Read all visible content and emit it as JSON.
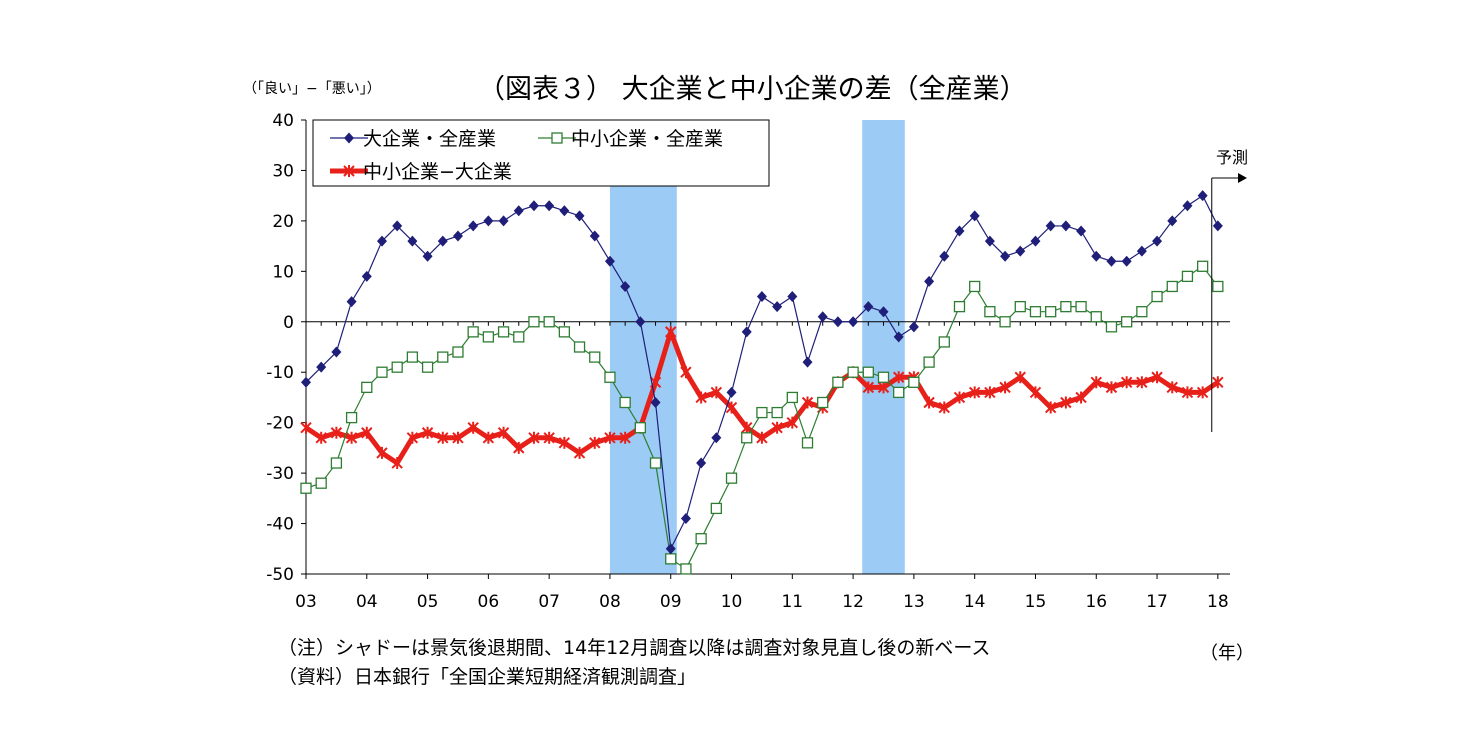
{
  "page": {
    "title": "（図表３） 大企業と中小企業の差（全産業）",
    "y_unit_label": "（「良い」−「悪い」）",
    "x_unit_label": "（年）",
    "note": "（注）シャドーは景気後退期間、14年12月調査以降は調査対象見直し後の新ベース",
    "source": "（資料）日本銀行「全国企業短期経済観測調査」",
    "forecast_label": "予測"
  },
  "colors": {
    "large": "#1f1f7a",
    "small": "#2e7d32",
    "diff": "#e8201a",
    "shade": "#9ccbf6"
  },
  "chart_data": {
    "type": "line",
    "title": "（図表３） 大企業と中小企業の差（全産業）",
    "ylabel": "（「良い」−「悪い」）",
    "xlabel": "（年）",
    "ylim": [
      -50,
      40
    ],
    "yticks": [
      40,
      30,
      20,
      10,
      0,
      -10,
      -20,
      -30,
      -40,
      -50
    ],
    "xticks": [
      "03",
      "04",
      "05",
      "06",
      "07",
      "08",
      "09",
      "10",
      "11",
      "12",
      "13",
      "14",
      "15",
      "16",
      "17",
      "18"
    ],
    "x_start": 2003.0,
    "x_step": 0.25,
    "x_range": [
      2003.0,
      2018.2
    ],
    "shaded_ranges": [
      [
        2008.0,
        2009.1
      ],
      [
        2012.15,
        2012.85
      ]
    ],
    "forecast_at": 2017.9,
    "legend_position": "top-left",
    "grid": false,
    "series": [
      {
        "name": "大企業・全産業",
        "marker": "diamond",
        "values": [
          -12,
          -9,
          -6,
          4,
          9,
          16,
          19,
          16,
          13,
          16,
          17,
          19,
          20,
          20,
          22,
          23,
          23,
          22,
          21,
          17,
          12,
          7,
          0,
          -16,
          -45,
          -39,
          -28,
          -23,
          -14,
          -2,
          5,
          3,
          5,
          -8,
          1,
          0,
          0,
          3,
          2,
          -3,
          -1,
          8,
          13,
          18,
          21,
          16,
          13,
          14,
          16,
          19,
          19,
          18,
          13,
          12,
          12,
          14,
          16,
          20,
          23,
          25,
          19
        ]
      },
      {
        "name": "中小企業・全産業",
        "marker": "square",
        "values": [
          -33,
          -32,
          -28,
          -19,
          -13,
          -10,
          -9,
          -7,
          -9,
          -7,
          -6,
          -2,
          -3,
          -2,
          -3,
          0,
          0,
          -2,
          -5,
          -7,
          -11,
          -16,
          -21,
          -28,
          -47,
          -49,
          -43,
          -37,
          -31,
          -23,
          -18,
          -18,
          -15,
          -24,
          -16,
          -12,
          -10,
          -10,
          -11,
          -14,
          -12,
          -8,
          -4,
          3,
          7,
          2,
          0,
          3,
          2,
          2,
          3,
          3,
          1,
          -1,
          0,
          2,
          5,
          7,
          9,
          11,
          7
        ]
      },
      {
        "name": "中小企業−大企業",
        "marker": "star",
        "values": [
          -21,
          -23,
          -22,
          -23,
          -22,
          -26,
          -28,
          -23,
          -22,
          -23,
          -23,
          -21,
          -23,
          -22,
          -25,
          -23,
          -23,
          -24,
          -26,
          -24,
          -23,
          -23,
          -21,
          -12,
          -2,
          -10,
          -15,
          -14,
          -17,
          -21,
          -23,
          -21,
          -20,
          -16,
          -17,
          -12,
          -10,
          -13,
          -13,
          -11,
          -11,
          -16,
          -17,
          -15,
          -14,
          -14,
          -13,
          -11,
          -14,
          -17,
          -16,
          -15,
          -12,
          -13,
          -12,
          -12,
          -11,
          -13,
          -14,
          -14,
          -12
        ]
      }
    ]
  }
}
